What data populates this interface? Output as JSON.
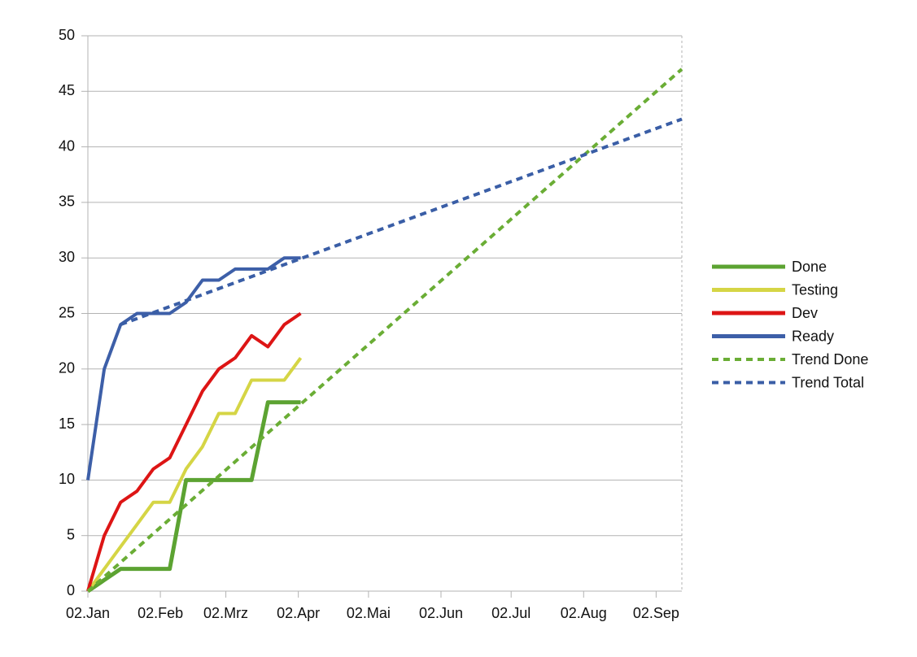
{
  "chart_data": {
    "type": "line",
    "x": [
      0,
      7,
      14,
      21,
      28,
      35,
      42,
      49,
      56,
      63,
      70,
      77,
      84,
      91
    ],
    "series": [
      {
        "name": "Done",
        "color": "#5ca332",
        "values": [
          0,
          1,
          2,
          2,
          2,
          2,
          10,
          10,
          10,
          10,
          10,
          17,
          17,
          17
        ]
      },
      {
        "name": "Testing",
        "color": "#d5d545",
        "values": [
          0,
          2,
          4,
          6,
          8,
          8,
          11,
          13,
          16,
          16,
          19,
          19,
          19,
          21
        ]
      },
      {
        "name": "Dev",
        "color": "#dd1515",
        "values": [
          0,
          5,
          8,
          9,
          11,
          12,
          15,
          18,
          20,
          21,
          23,
          22,
          24,
          25
        ]
      },
      {
        "name": "Ready",
        "color": "#3d5fa8",
        "values": [
          10,
          20,
          24,
          25,
          25,
          25,
          26,
          28,
          28,
          29,
          29,
          29,
          30,
          30
        ]
      },
      {
        "name": "Trend Done",
        "color": "#6aad35",
        "dashed": true,
        "x": [
          0,
          254
        ],
        "values": [
          0,
          47
        ]
      },
      {
        "name": "Trend Total",
        "color": "#3a5ea6",
        "dashed": true,
        "x": [
          14,
          254
        ],
        "values": [
          24,
          42.5
        ]
      }
    ],
    "xlim": [
      0,
      254
    ],
    "xticks": [
      {
        "value": 0,
        "label": "02.Jan"
      },
      {
        "value": 31,
        "label": "02.Feb"
      },
      {
        "value": 59,
        "label": "02.Mrz"
      },
      {
        "value": 90,
        "label": "02.Apr"
      },
      {
        "value": 120,
        "label": "02.Mai"
      },
      {
        "value": 151,
        "label": "02.Jun"
      },
      {
        "value": 181,
        "label": "02.Jul"
      },
      {
        "value": 212,
        "label": "02.Aug"
      },
      {
        "value": 243,
        "label": "02.Sep"
      }
    ],
    "ylim": [
      0,
      50
    ],
    "yticks": [
      0,
      5,
      10,
      15,
      20,
      25,
      30,
      35,
      40,
      45,
      50
    ],
    "grid": true,
    "legend": "right"
  }
}
